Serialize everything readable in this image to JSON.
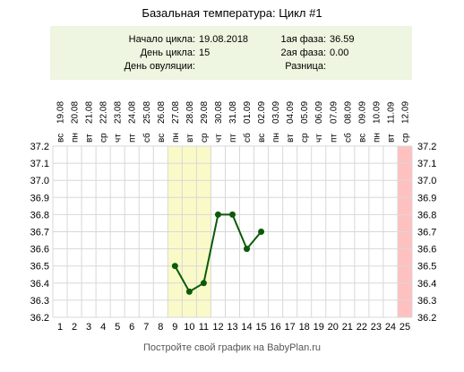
{
  "title": "Базальная температура: Цикл #1",
  "info": {
    "cycle_start_label": "Начало цикла:",
    "cycle_start_value": "19.08.2018",
    "cycle_day_label": "День цикла:",
    "cycle_day_value": "15",
    "ovulation_label": "День овуляции:",
    "ovulation_value": "",
    "phase1_label": "1ая фаза:",
    "phase1_value": "36.59",
    "phase2_label": "2ая фаза:",
    "phase2_value": "0.00",
    "diff_label": "Разница:",
    "diff_value": ""
  },
  "footer": "Постройте свой график на BabyPlan.ru",
  "colors": {
    "line": "#0a5a0a",
    "point": "#0a5a0a",
    "highlight_band": "#fafac8",
    "end_band": "#ffc0c0",
    "grid": "#d8d8d8",
    "infobox": "#eef5e0"
  },
  "chart_data": {
    "type": "line",
    "title": "Базальная температура: Цикл #1",
    "days": [
      "1",
      "2",
      "3",
      "4",
      "5",
      "6",
      "7",
      "8",
      "9",
      "10",
      "11",
      "12",
      "13",
      "14",
      "15",
      "16",
      "17",
      "18",
      "19",
      "20",
      "21",
      "22",
      "23",
      "24",
      "25"
    ],
    "weekdays": [
      "вс",
      "пн",
      "вт",
      "ср",
      "чт",
      "пт",
      "сб",
      "вс",
      "пн",
      "вт",
      "ср",
      "чт",
      "пт",
      "сб",
      "вс",
      "пн",
      "вт",
      "ср",
      "чт",
      "пт",
      "сб",
      "вс",
      "пн",
      "вт",
      "ср"
    ],
    "dates": [
      "19.08",
      "20.08",
      "21.08",
      "22.08",
      "23.08",
      "24.08",
      "25.08",
      "26.08",
      "27.08",
      "28.08",
      "29.08",
      "30.08",
      "31.08",
      "01.09",
      "02.09",
      "03.09",
      "04.09",
      "05.09",
      "06.09",
      "07.09",
      "08.09",
      "09.09",
      "10.09",
      "11.09",
      "12.09"
    ],
    "y_ticks": [
      "37.2",
      "37.1",
      "37.0",
      "36.9",
      "36.8",
      "36.7",
      "36.6",
      "36.5",
      "36.4",
      "36.3",
      "36.2"
    ],
    "ylim": [
      36.2,
      37.2
    ],
    "grid": true,
    "highlight_days": [
      9,
      11
    ],
    "end_day": 25,
    "series": [
      {
        "x": [
          9,
          10,
          11,
          12,
          13,
          14,
          15
        ],
        "values": [
          36.5,
          36.35,
          36.4,
          36.8,
          36.8,
          36.6,
          36.7
        ]
      }
    ]
  }
}
